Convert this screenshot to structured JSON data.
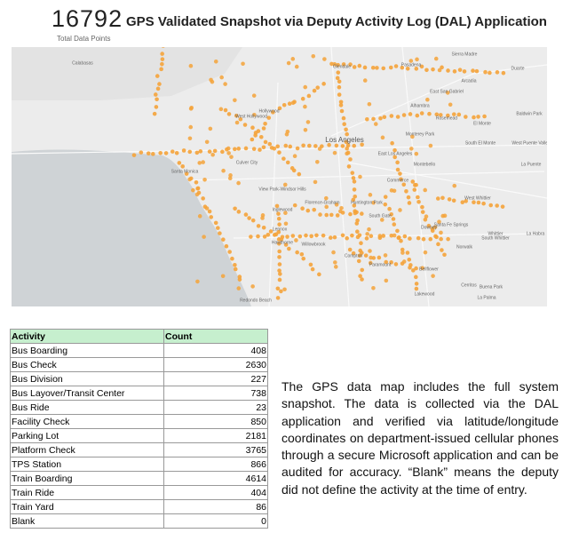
{
  "header": {
    "total": "16792",
    "total_label": "Total Data Points",
    "title": "GPS Validated Snapshot via Deputy Activity Log (DAL) Application"
  },
  "map": {
    "labels": [
      "Calabasas",
      "Glendale",
      "Pasadena",
      "Sierra Madre",
      "Arcadia",
      "Duarte",
      "Hollywood",
      "West Hollywood",
      "Alhambra",
      "East San Gabriel",
      "Rosemead",
      "El Monte",
      "Baldwin Park",
      "Los Angeles",
      "Monterey Park",
      "Santa Monica",
      "Culver City",
      "East Los Angeles",
      "Montebello",
      "South El Monte",
      "West Puente Valley",
      "La Puente",
      "View Park-Windsor Hills",
      "Commerce",
      "Inglewood",
      "Huntington Park",
      "Florence-Graham",
      "South Gate",
      "West Whittier",
      "Whittier",
      "Lennox",
      "Hawthorne",
      "Downey",
      "Santa Fe Springs",
      "Norwalk",
      "South Whittier",
      "La Habra",
      "Willowbrook",
      "Compton",
      "Paramount",
      "Bellflower",
      "Cerritos",
      "Buena Park",
      "Lakewood",
      "La Palma",
      "Redondo Beach"
    ]
  },
  "table": {
    "header": [
      "Activity",
      "Count"
    ],
    "rows": [
      [
        "Bus Boarding",
        408
      ],
      [
        "Bus Check",
        2630
      ],
      [
        "Bus Division",
        227
      ],
      [
        "Bus Layover/Transit Center",
        738
      ],
      [
        "Bus Ride",
        23
      ],
      [
        "Facility Check",
        850
      ],
      [
        "Parking Lot",
        2181
      ],
      [
        "Platform Check",
        3765
      ],
      [
        "TPS Station",
        866
      ],
      [
        "Train Boarding",
        4614
      ],
      [
        "Train Ride",
        404
      ],
      [
        "Train Yard",
        86
      ],
      [
        "Blank",
        0
      ]
    ]
  },
  "paragraph": "The GPS data map includes the full system snapshot. The data is collected via the DAL application and verified via latitude/longitude coordinates on department-issued cellular phones through a secure Microsoft application and can be audited for accuracy. “Blank” means the deputy did not define the activity at the time of entry."
}
